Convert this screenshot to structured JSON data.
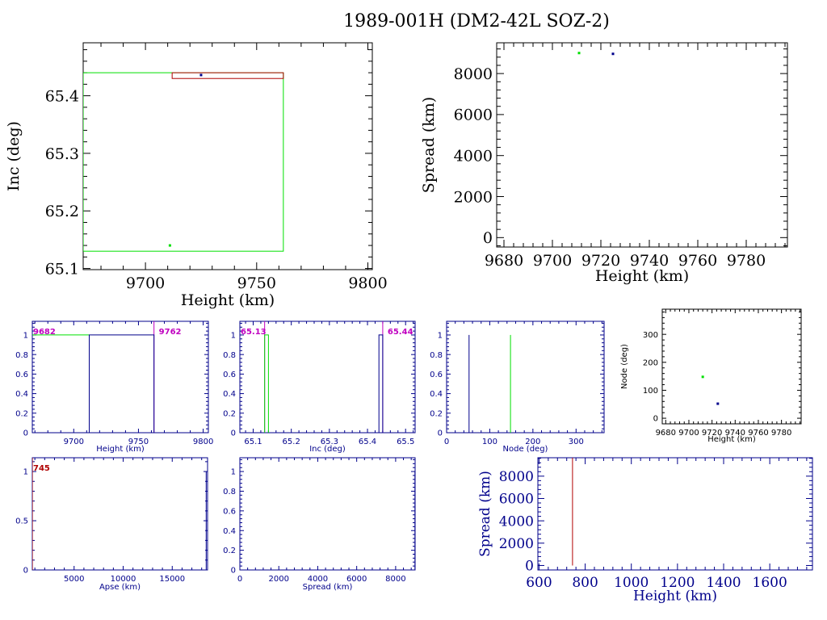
{
  "title": "1989-001H (DM2-42L SOZ-2)",
  "colors": {
    "green": "#00e000",
    "blue": "#00008b",
    "red": "#b00000",
    "magenta": "#c000c0",
    "black": "#000000"
  },
  "chart_data": [
    {
      "id": "inc-vs-height",
      "type": "scatter",
      "xlabel": "Height (km)",
      "ylabel": "Inc (deg)",
      "xlim": [
        9672,
        9802
      ],
      "ylim": [
        65.098,
        65.492
      ],
      "xticks": [
        9700,
        9750,
        9800
      ],
      "yticks": [
        65.1,
        65.2,
        65.3,
        65.4
      ],
      "points": [
        {
          "x": 9711,
          "y": 65.14,
          "color": "green"
        },
        {
          "x": 9725,
          "y": 65.436,
          "color": "blue"
        }
      ],
      "boxes": [
        {
          "x0": 9672,
          "x1": 9762,
          "y0": 65.13,
          "y1": 65.44,
          "color": "green"
        },
        {
          "x0": 9712,
          "x1": 9762,
          "y0": 65.43,
          "y1": 65.44,
          "color": "red"
        }
      ]
    },
    {
      "id": "spread-vs-height",
      "type": "scatter",
      "xlabel": "Height (km)",
      "ylabel": "Spread (km)",
      "xlim": [
        9677,
        9797
      ],
      "ylim": [
        -460,
        9500
      ],
      "xticks": [
        9680,
        9700,
        9720,
        9740,
        9760,
        9780
      ],
      "yticks": [
        0,
        2000,
        4000,
        6000,
        8000
      ],
      "points": [
        {
          "x": 9711,
          "y": 9000,
          "color": "green"
        },
        {
          "x": 9725,
          "y": 8960,
          "color": "blue"
        }
      ]
    },
    {
      "id": "height-hist",
      "type": "line",
      "xlabel": "Height (km)",
      "ylabel": "",
      "xlim": [
        9668,
        9804
      ],
      "ylim": [
        0,
        1.14
      ],
      "xticks": [
        9700,
        9750,
        9800
      ],
      "yticks": [
        0,
        0.2,
        0.4,
        0.6,
        0.8,
        1
      ],
      "annotations": [
        {
          "text": "9682",
          "color": "magenta",
          "side": "left"
        },
        {
          "text": "9762",
          "color": "magenta",
          "side": "right"
        }
      ],
      "vlines": [
        {
          "x": 9762,
          "color": "magenta"
        }
      ],
      "series": [
        {
          "color": "green",
          "x": [
            9668,
            9712
          ],
          "y": [
            1,
            1
          ]
        },
        {
          "color": "blue",
          "x": [
            9712,
            9712,
            9762,
            9762
          ],
          "y": [
            0,
            1,
            1,
            0
          ]
        }
      ]
    },
    {
      "id": "inc-hist",
      "type": "line",
      "xlabel": "Inc (deg)",
      "ylabel": "",
      "xlim": [
        65.065,
        65.525
      ],
      "ylim": [
        0,
        1.14
      ],
      "xticks": [
        65.1,
        65.2,
        65.3,
        65.4,
        65.5
      ],
      "yticks": [
        0,
        0.2,
        0.4,
        0.6,
        0.8,
        1
      ],
      "annotations": [
        {
          "text": "65.13",
          "color": "magenta",
          "side": "left"
        },
        {
          "text": "65.44",
          "color": "magenta",
          "side": "right"
        }
      ],
      "vlines": [
        {
          "x": 65.13,
          "color": "magenta"
        },
        {
          "x": 65.44,
          "color": "magenta"
        }
      ],
      "series": [
        {
          "color": "green",
          "x": [
            65.13,
            65.13,
            65.14,
            65.14
          ],
          "y": [
            0,
            1,
            1,
            0
          ]
        },
        {
          "color": "blue",
          "x": [
            65.43,
            65.43,
            65.44,
            65.44
          ],
          "y": [
            0,
            1,
            1,
            0
          ]
        }
      ]
    },
    {
      "id": "node-hist",
      "type": "line",
      "xlabel": "Node (deg)",
      "ylabel": "",
      "xlim": [
        0,
        365
      ],
      "ylim": [
        0,
        1.14
      ],
      "xticks": [
        0,
        100,
        200,
        300
      ],
      "yticks": [
        0,
        0.2,
        0.4,
        0.6,
        0.8,
        1
      ],
      "series": [
        {
          "color": "blue",
          "x": [
            52,
            52
          ],
          "y": [
            0,
            1
          ]
        },
        {
          "color": "green",
          "x": [
            148,
            148
          ],
          "y": [
            0,
            1
          ]
        }
      ]
    },
    {
      "id": "node-vs-height",
      "type": "scatter",
      "xlabel": "Height (km)",
      "ylabel": "Node (deg)",
      "xlim": [
        9677,
        9797
      ],
      "ylim": [
        -20,
        390
      ],
      "xticks": [
        9680,
        9700,
        9720,
        9740,
        9760,
        9780
      ],
      "yticks": [
        0,
        100,
        200,
        300
      ],
      "points": [
        {
          "x": 9712,
          "y": 148,
          "color": "green"
        },
        {
          "x": 9725,
          "y": 52,
          "color": "blue"
        }
      ]
    },
    {
      "id": "apse-hist",
      "type": "line",
      "xlabel": "Apse (km)",
      "ylabel": "",
      "xlim": [
        740,
        18600
      ],
      "ylim": [
        0,
        1.14
      ],
      "xticks": [
        5000,
        10000,
        15000
      ],
      "yticks": [
        0,
        0.5,
        1
      ],
      "annotations": [
        {
          "text": "745",
          "color": "red",
          "side": "left"
        }
      ],
      "vlines": [
        {
          "x": 745,
          "color": "red"
        }
      ],
      "series": [
        {
          "color": "blue",
          "x": [
            18460,
            18460
          ],
          "y": [
            0,
            1
          ]
        }
      ]
    },
    {
      "id": "spread-hist",
      "type": "line",
      "xlabel": "Spread (km)",
      "ylabel": "",
      "xlim": [
        0,
        9000
      ],
      "ylim": [
        0,
        1.14
      ],
      "xticks": [
        0,
        2000,
        4000,
        6000,
        8000
      ],
      "yticks": [
        0,
        0.2,
        0.4,
        0.6,
        0.8,
        1
      ],
      "series": [
        {
          "color": "blue",
          "x": [
            8990,
            8990
          ],
          "y": [
            0,
            1
          ]
        }
      ]
    },
    {
      "id": "spread-vs-height-low",
      "type": "line",
      "xlabel": "Height (km)",
      "ylabel": "Spread (km)",
      "xlim": [
        595,
        1785
      ],
      "ylim": [
        -400,
        9650
      ],
      "xticks": [
        600,
        800,
        1000,
        1200,
        1400,
        1600
      ],
      "yticks": [
        0,
        2000,
        4000,
        6000,
        8000
      ],
      "series": [
        {
          "color": "red",
          "x": [
            745,
            745
          ],
          "y": [
            0,
            9650
          ]
        }
      ]
    }
  ]
}
